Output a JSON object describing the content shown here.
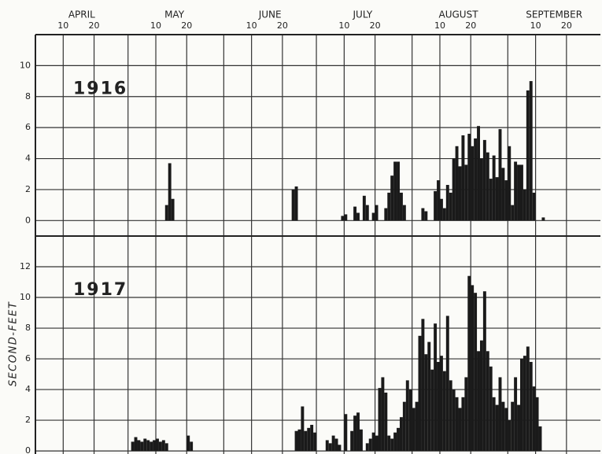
{
  "ylabel": "SECOND-FEET",
  "x_axis": {
    "xlim": [
      "04-01",
      "10-01"
    ],
    "months": [
      {
        "value": "04-01",
        "label": "APRIL"
      },
      {
        "value": "05-01",
        "label": "MAY"
      },
      {
        "value": "06-01",
        "label": "JUNE"
      },
      {
        "value": "07-01",
        "label": "JULY"
      },
      {
        "value": "08-01",
        "label": "AUGUST"
      },
      {
        "value": "09-01",
        "label": "SEPTEMBER"
      }
    ],
    "day_ticks": [
      {
        "value": "04-10",
        "label": "10"
      },
      {
        "value": "04-20",
        "label": "20"
      },
      {
        "value": "05-10",
        "label": "10"
      },
      {
        "value": "05-20",
        "label": "20"
      },
      {
        "value": "06-10",
        "label": "10"
      },
      {
        "value": "06-20",
        "label": "20"
      },
      {
        "value": "07-10",
        "label": "10"
      },
      {
        "value": "07-20",
        "label": "20"
      },
      {
        "value": "08-10",
        "label": "10"
      },
      {
        "value": "08-20",
        "label": "20"
      },
      {
        "value": "09-10",
        "label": "10"
      },
      {
        "value": "09-20",
        "label": "20"
      }
    ]
  },
  "chart_data": [
    {
      "type": "bar",
      "title": "1916",
      "color": "#1a1a1a",
      "grid": true,
      "ylim": [
        -1,
        12
      ],
      "yticks": [
        0,
        2,
        4,
        6,
        8,
        10
      ],
      "x": [
        "05-13",
        "05-14",
        "05-15",
        "06-23",
        "06-24",
        "07-09",
        "07-10",
        "07-13",
        "07-14",
        "07-16",
        "07-17",
        "07-19",
        "07-20",
        "07-23",
        "07-24",
        "07-25",
        "07-26",
        "07-27",
        "07-28",
        "07-29",
        "08-04",
        "08-05",
        "08-08",
        "08-09",
        "08-10",
        "08-11",
        "08-12",
        "08-13",
        "08-14",
        "08-15",
        "08-16",
        "08-17",
        "08-18",
        "08-19",
        "08-20",
        "08-21",
        "08-22",
        "08-23",
        "08-24",
        "08-25",
        "08-26",
        "08-27",
        "08-28",
        "08-29",
        "08-30",
        "08-31",
        "09-01",
        "09-02",
        "09-03",
        "09-04",
        "09-05",
        "09-06",
        "09-07",
        "09-08",
        "09-09",
        "09-12"
      ],
      "values": [
        1.0,
        3.7,
        1.4,
        2.0,
        2.2,
        0.3,
        0.4,
        0.9,
        0.5,
        1.6,
        1.0,
        0.5,
        1.0,
        0.8,
        1.8,
        2.9,
        3.8,
        3.8,
        1.8,
        1.0,
        0.8,
        0.6,
        1.9,
        2.6,
        1.4,
        0.8,
        2.3,
        1.8,
        4.0,
        4.8,
        3.5,
        5.5,
        3.6,
        5.6,
        4.8,
        5.3,
        6.1,
        4.0,
        5.2,
        4.4,
        2.7,
        4.2,
        2.8,
        5.9,
        3.4,
        2.6,
        4.8,
        1.0,
        3.8,
        3.6,
        3.6,
        2.0,
        8.4,
        9.0,
        1.8,
        0.2
      ]
    },
    {
      "type": "bar",
      "title": "1917",
      "color": "#1a1a1a",
      "grid": true,
      "ylim": [
        -0.2,
        14
      ],
      "yticks": [
        0,
        2,
        4,
        6,
        8,
        10,
        12
      ],
      "x": [
        "05-02",
        "05-03",
        "05-04",
        "05-05",
        "05-06",
        "05-07",
        "05-08",
        "05-09",
        "05-10",
        "05-11",
        "05-12",
        "05-13",
        "05-20",
        "05-21",
        "06-24",
        "06-25",
        "06-26",
        "06-27",
        "06-28",
        "06-29",
        "06-30",
        "07-04",
        "07-05",
        "07-06",
        "07-07",
        "07-08",
        "07-10",
        "07-12",
        "07-13",
        "07-14",
        "07-15",
        "07-17",
        "07-18",
        "07-19",
        "07-20",
        "07-21",
        "07-22",
        "07-23",
        "07-24",
        "07-25",
        "07-26",
        "07-27",
        "07-28",
        "07-29",
        "07-30",
        "07-31",
        "08-01",
        "08-02",
        "08-03",
        "08-04",
        "08-05",
        "08-06",
        "08-07",
        "08-08",
        "08-09",
        "08-10",
        "08-11",
        "08-12",
        "08-13",
        "08-14",
        "08-15",
        "08-16",
        "08-17",
        "08-18",
        "08-19",
        "08-20",
        "08-21",
        "08-22",
        "08-23",
        "08-24",
        "08-25",
        "08-26",
        "08-27",
        "08-28",
        "08-29",
        "08-30",
        "08-31",
        "09-01",
        "09-02",
        "09-03",
        "09-04",
        "09-05",
        "09-06",
        "09-07",
        "09-08",
        "09-09",
        "09-10",
        "09-11"
      ],
      "values": [
        0.6,
        0.9,
        0.7,
        0.6,
        0.8,
        0.7,
        0.6,
        0.7,
        0.8,
        0.6,
        0.7,
        0.5,
        1.0,
        0.6,
        1.3,
        1.4,
        2.9,
        1.3,
        1.5,
        1.7,
        1.2,
        0.7,
        0.5,
        1.0,
        0.8,
        0.4,
        2.4,
        1.3,
        2.3,
        2.5,
        1.4,
        0.5,
        0.8,
        1.2,
        1.0,
        4.1,
        4.8,
        3.8,
        1.0,
        0.8,
        1.2,
        1.5,
        2.2,
        3.2,
        4.6,
        4.0,
        2.8,
        3.2,
        7.5,
        8.6,
        6.3,
        7.1,
        5.3,
        8.3,
        5.8,
        6.2,
        5.2,
        8.8,
        4.6,
        4.0,
        3.5,
        2.8,
        3.5,
        4.8,
        11.4,
        10.8,
        10.3,
        6.5,
        7.2,
        10.4,
        6.5,
        5.5,
        3.5,
        3.0,
        4.8,
        3.2,
        2.8,
        2.0,
        3.2,
        4.8,
        3.0,
        6.0,
        6.2,
        6.8,
        5.8,
        4.2,
        3.5,
        1.6
      ]
    }
  ]
}
